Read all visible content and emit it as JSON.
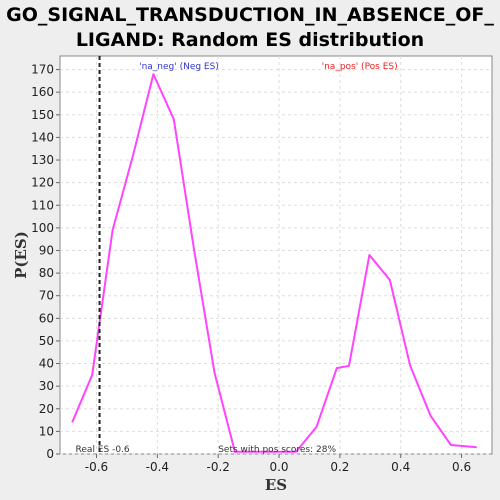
{
  "chart_data": {
    "type": "line",
    "title_line1": "GO_SIGNAL_TRANSDUCTION_IN_ABSENCE_OF_",
    "title_line2": "LIGAND: Random ES distribution",
    "xlabel": "ES",
    "ylabel": "P(ES)",
    "xlim": [
      -0.72,
      0.7
    ],
    "ylim": [
      0,
      176
    ],
    "xticks": [
      -0.6,
      -0.4,
      -0.2,
      0.0,
      0.2,
      0.4,
      0.6
    ],
    "yticks": [
      0,
      10,
      20,
      30,
      40,
      50,
      60,
      70,
      80,
      90,
      100,
      110,
      120,
      130,
      140,
      150,
      160,
      170
    ],
    "grid": true,
    "series": [
      {
        "color": "#ff44ff",
        "x": [
          -0.68,
          -0.614,
          -0.547,
          -0.48,
          -0.413,
          -0.346,
          -0.279,
          -0.212,
          -0.145,
          -0.078,
          -0.011,
          0.056,
          0.123,
          0.19,
          0.23,
          0.297,
          0.364,
          0.431,
          0.498,
          0.565,
          0.65
        ],
        "y": [
          14,
          35,
          99,
          132,
          168,
          148,
          90,
          36,
          1,
          1,
          1,
          1,
          12,
          38,
          39,
          88,
          77,
          39,
          17,
          4,
          3
        ]
      }
    ],
    "reference_line": {
      "x": -0.59,
      "label": "Real ES -0.6"
    },
    "legend": [
      {
        "text": "'na_neg' (Neg ES)",
        "color": "#3333cc",
        "position": "top-left"
      },
      {
        "text": "'na_pos' (Pos ES)",
        "color": "#ee2222",
        "position": "top-right"
      }
    ],
    "annotation": "Sets with pos scores: 28%"
  }
}
